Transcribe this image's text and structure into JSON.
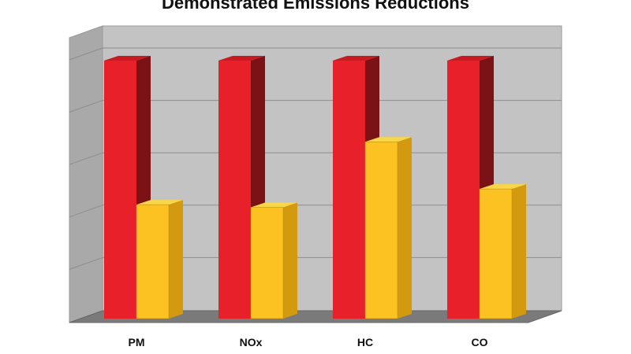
{
  "chart_data": {
    "type": "bar",
    "title": "Demonstrated Emissions Reductions",
    "categories": [
      "PM",
      "NOx",
      "HC",
      "CO"
    ],
    "series": [
      {
        "values": [
          100,
          100,
          100,
          100
        ],
        "color": "#e8202a"
      },
      {
        "values": [
          45,
          44,
          69,
          51
        ],
        "color": "#fcc222"
      }
    ],
    "ylim": [
      0,
      100
    ],
    "grid": true,
    "three_d": true
  }
}
